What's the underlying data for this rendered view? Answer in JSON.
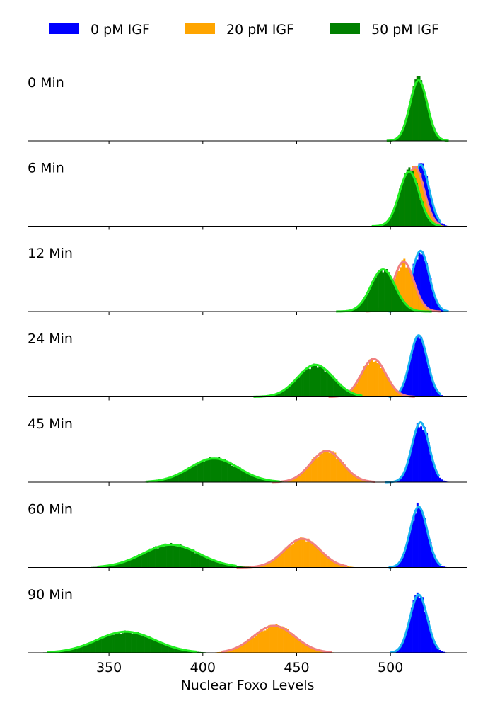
{
  "chart_data": {
    "type": "histogram",
    "xlabel": "Nuclear Foxo Levels",
    "xlim": [
      307,
      541
    ],
    "x_ticks": [
      350,
      400,
      450,
      500
    ],
    "legend_position": "top",
    "grid": false,
    "series": [
      {
        "name": "0 pM IGF",
        "bar_color": "#0000ff",
        "curve_color": "#1ab2f0"
      },
      {
        "name": "20 pM IGF",
        "bar_color": "#ffa500",
        "curve_color": "#f08080"
      },
      {
        "name": "50 pM IGF",
        "bar_color": "#008000",
        "curve_color": "#22ee22"
      }
    ],
    "panels": [
      {
        "label": "0 Min",
        "dists": [
          {
            "series": "0 pM IGF",
            "mean": 515,
            "sd": 4.6,
            "height": 0.72,
            "range": [
              498,
              531
            ]
          },
          {
            "series": "20 pM IGF",
            "mean": 515,
            "sd": 4.6,
            "height": 0.72,
            "range": [
              498,
              531
            ]
          },
          {
            "series": "50 pM IGF",
            "mean": 515,
            "sd": 4.6,
            "height": 0.72,
            "range": [
              498,
              531
            ]
          }
        ]
      },
      {
        "label": "6 Min",
        "dists": [
          {
            "series": "0 pM IGF",
            "mean": 516,
            "sd": 4.6,
            "height": 0.73,
            "range": [
              499,
              527
            ]
          },
          {
            "series": "20 pM IGF",
            "mean": 513,
            "sd": 5.0,
            "height": 0.7,
            "range": [
              494,
              527
            ]
          },
          {
            "series": "50 pM IGF",
            "mean": 510,
            "sd": 5.3,
            "height": 0.65,
            "range": [
              490,
              527
            ]
          }
        ]
      },
      {
        "label": "12 Min",
        "dists": [
          {
            "series": "0 pM IGF",
            "mean": 516,
            "sd": 4.6,
            "height": 0.72,
            "range": [
              499,
              531
            ]
          },
          {
            "series": "20 pM IGF",
            "mean": 507,
            "sd": 5.5,
            "height": 0.59,
            "range": [
              487,
              527
            ]
          },
          {
            "series": "50 pM IGF",
            "mean": 496,
            "sd": 6.5,
            "height": 0.5,
            "range": [
              471,
              522
            ]
          }
        ]
      },
      {
        "label": "24 Min",
        "dists": [
          {
            "series": "0 pM IGF",
            "mean": 515,
            "sd": 4.6,
            "height": 0.73,
            "range": [
              499,
              527
            ]
          },
          {
            "series": "20 pM IGF",
            "mean": 491,
            "sd": 6.5,
            "height": 0.45,
            "range": [
              467,
              513
            ]
          },
          {
            "series": "50 pM IGF",
            "mean": 460,
            "sd": 9.5,
            "height": 0.38,
            "range": [
              427,
              485
            ]
          }
        ]
      },
      {
        "label": "45 Min",
        "dists": [
          {
            "series": "0 pM IGF",
            "mean": 516,
            "sd": 4.6,
            "height": 0.71,
            "range": [
              497,
              526
            ]
          },
          {
            "series": "20 pM IGF",
            "mean": 466,
            "sd": 8.5,
            "height": 0.37,
            "range": [
              437,
              492
            ]
          },
          {
            "series": "50 pM IGF",
            "mean": 406,
            "sd": 13.0,
            "height": 0.28,
            "range": [
              370,
              441
            ]
          }
        ]
      },
      {
        "label": "60 Min",
        "dists": [
          {
            "series": "0 pM IGF",
            "mean": 515,
            "sd": 4.6,
            "height": 0.72,
            "range": [
              499,
              527
            ]
          },
          {
            "series": "20 pM IGF",
            "mean": 453,
            "sd": 9.5,
            "height": 0.34,
            "range": [
              418,
              477
            ]
          },
          {
            "series": "50 pM IGF",
            "mean": 383,
            "sd": 15.0,
            "height": 0.27,
            "range": [
              344,
              418
            ]
          }
        ]
      },
      {
        "label": "90 Min",
        "dists": [
          {
            "series": "0 pM IGF",
            "mean": 515,
            "sd": 4.6,
            "height": 0.69,
            "range": [
              500,
              526
            ]
          },
          {
            "series": "20 pM IGF",
            "mean": 438,
            "sd": 11.0,
            "height": 0.32,
            "range": [
              410,
              469
            ]
          },
          {
            "series": "50 pM IGF",
            "mean": 359,
            "sd": 15.5,
            "height": 0.25,
            "range": [
              317,
              397
            ]
          }
        ]
      }
    ]
  }
}
